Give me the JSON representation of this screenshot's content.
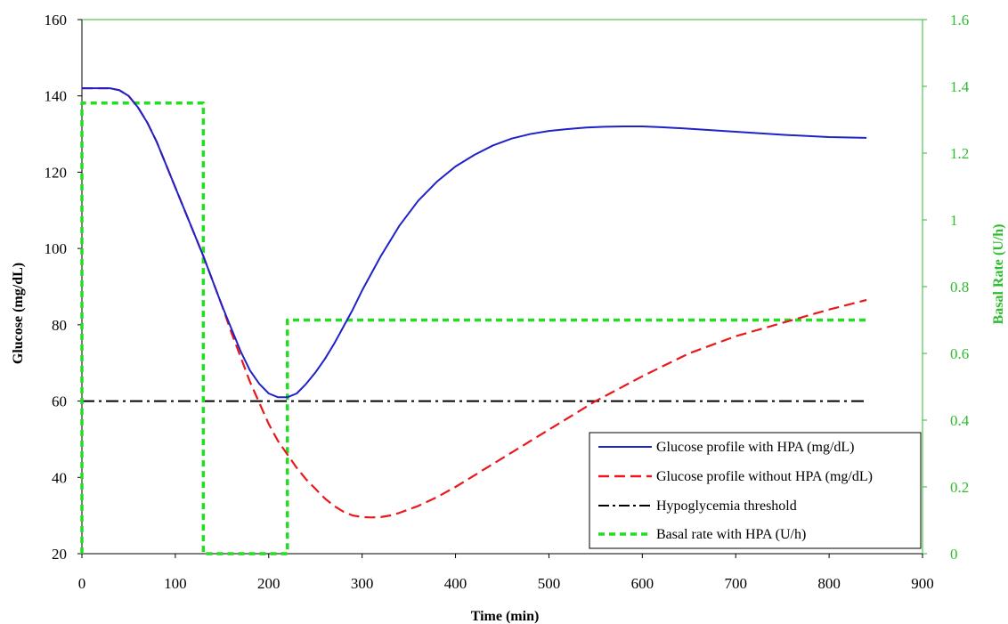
{
  "chart_data": {
    "type": "line",
    "title": "",
    "xlabel": "Time (min)",
    "ylabel": "Glucose (mg/dL)",
    "y2label": "Basal Rate (U/h)",
    "xlim": [
      0,
      900
    ],
    "ylim": [
      20,
      160
    ],
    "y2lim": [
      0,
      1.6
    ],
    "xticks": [
      "0",
      "100",
      "200",
      "300",
      "400",
      "500",
      "600",
      "700",
      "800",
      "900"
    ],
    "yticks": [
      "20",
      "40",
      "60",
      "80",
      "100",
      "120",
      "140",
      "160"
    ],
    "y2ticks": [
      "0",
      "0.2",
      "0.4",
      "0.6",
      "0.8",
      "1",
      "1.2",
      "1.4",
      "1.6"
    ],
    "grid": false,
    "legend_position": "bottom-right",
    "colors": {
      "axis": "#000000",
      "right_axis": "#2ebd2e",
      "with_hpa": "#1f22c8",
      "without_hpa": "#e8191c",
      "threshold": "#000000",
      "basal": "#22dd22"
    },
    "series": [
      {
        "name": "Glucose profile with HPA (mg/dL)",
        "axis": "left",
        "style": "solid",
        "x": [
          0,
          10,
          20,
          30,
          40,
          50,
          60,
          70,
          80,
          90,
          100,
          110,
          120,
          130,
          140,
          150,
          160,
          170,
          180,
          190,
          200,
          210,
          220,
          230,
          240,
          250,
          260,
          270,
          280,
          290,
          300,
          320,
          340,
          360,
          380,
          400,
          420,
          440,
          460,
          480,
          500,
          520,
          540,
          560,
          580,
          600,
          620,
          650,
          700,
          750,
          800,
          840
        ],
        "y": [
          142,
          142,
          142,
          142,
          141.5,
          140,
          137,
          133,
          128,
          122,
          116,
          110,
          104,
          98,
          91.5,
          85,
          79,
          73,
          68,
          64.5,
          62,
          61,
          61,
          62,
          64.5,
          67.5,
          71,
          75,
          79.5,
          84,
          89,
          98,
          106,
          112.5,
          117.5,
          121.5,
          124.5,
          127,
          128.8,
          130,
          130.8,
          131.3,
          131.7,
          131.9,
          132,
          132,
          131.8,
          131.4,
          130.6,
          129.8,
          129.2,
          129
        ]
      },
      {
        "name": "Glucose profile without HPA (mg/dL)",
        "axis": "left",
        "style": "dashed",
        "x": [
          0,
          10,
          20,
          30,
          40,
          50,
          60,
          70,
          80,
          90,
          100,
          110,
          120,
          130,
          140,
          150,
          160,
          170,
          180,
          190,
          200,
          210,
          220,
          230,
          240,
          250,
          260,
          270,
          280,
          290,
          300,
          310,
          320,
          330,
          340,
          360,
          380,
          400,
          450,
          500,
          550,
          600,
          650,
          700,
          750,
          800,
          840
        ],
        "y": [
          142,
          142,
          142,
          142,
          141.5,
          140,
          137,
          133,
          128,
          122,
          116,
          110,
          104,
          98,
          91.5,
          85,
          78,
          71.5,
          65,
          59.5,
          54,
          49.5,
          46,
          42.5,
          39.5,
          37,
          34.5,
          32.5,
          31,
          30,
          29.6,
          29.5,
          29.6,
          30,
          30.7,
          32.5,
          34.8,
          37.5,
          45,
          52.5,
          60,
          66.5,
          72.5,
          77,
          80.5,
          84,
          86.5
        ]
      },
      {
        "name": "Hypoglycemia threshold",
        "axis": "left",
        "style": "dash-dot",
        "x": [
          0,
          840
        ],
        "y": [
          60,
          60
        ]
      },
      {
        "name": "Basal rate with HPA (U/h)",
        "axis": "right",
        "style": "dotted",
        "x": [
          0,
          0,
          130,
          130,
          220,
          220,
          840
        ],
        "y": [
          0,
          1.35,
          1.35,
          0,
          0,
          0.7,
          0.7
        ]
      }
    ]
  }
}
